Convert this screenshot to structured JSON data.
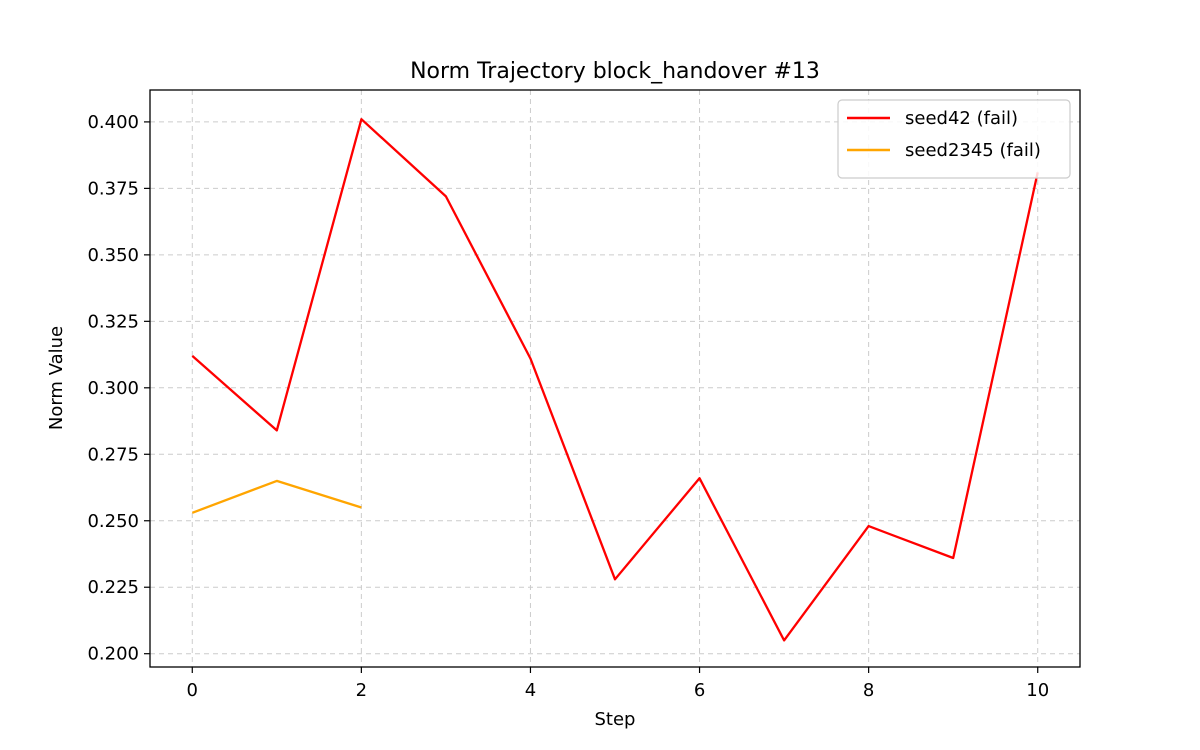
{
  "chart_data": {
    "type": "line",
    "title": "Norm Trajectory block_handover #13",
    "xlabel": "Step",
    "ylabel": "Norm Value",
    "xlim": [
      -0.5,
      10.5
    ],
    "ylim": [
      0.195,
      0.412
    ],
    "xticks": [
      0,
      2,
      4,
      6,
      8,
      10
    ],
    "yticks": [
      0.2,
      0.225,
      0.25,
      0.275,
      0.3,
      0.325,
      0.35,
      0.375,
      0.4
    ],
    "ytick_labels": [
      "0.200",
      "0.225",
      "0.250",
      "0.275",
      "0.300",
      "0.325",
      "0.350",
      "0.375",
      "0.400"
    ],
    "grid": true,
    "legend_position": "top-right",
    "series": [
      {
        "name": "seed42 (fail)",
        "color": "#ff0000",
        "x": [
          0,
          1,
          2,
          3,
          4,
          5,
          6,
          7,
          8,
          9,
          10
        ],
        "values": [
          0.312,
          0.284,
          0.401,
          0.372,
          0.311,
          0.228,
          0.266,
          0.205,
          0.248,
          0.236,
          0.381
        ]
      },
      {
        "name": "seed2345 (fail)",
        "color": "#ffa500",
        "x": [
          0,
          1,
          2
        ],
        "values": [
          0.253,
          0.265,
          0.255
        ]
      }
    ]
  }
}
